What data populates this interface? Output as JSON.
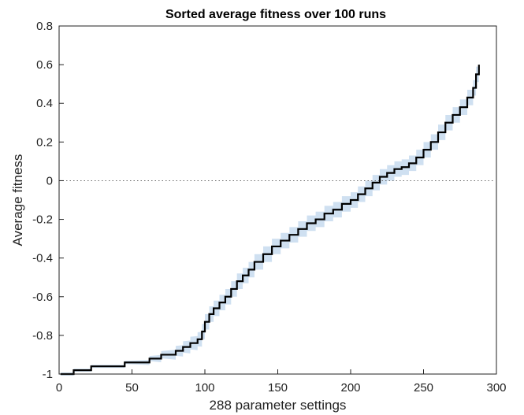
{
  "chart_data": {
    "type": "line",
    "title": "Sorted average fitness over 100 runs",
    "xlabel": "288 parameter settings",
    "ylabel": "Average fitness",
    "xlim": [
      0,
      300
    ],
    "ylim": [
      -1,
      0.8
    ],
    "xticks": [
      0,
      50,
      100,
      150,
      200,
      250,
      300
    ],
    "yticks": [
      -1,
      -0.8,
      -0.6,
      -0.4,
      -0.2,
      0,
      0.2,
      0.4,
      0.6,
      0.8
    ],
    "xtick_labels": [
      "0",
      "50",
      "100",
      "150",
      "200",
      "250",
      "300"
    ],
    "ytick_labels": [
      "-1",
      "-0.8",
      "-0.6",
      "-0.4",
      "-0.2",
      "0",
      "0.2",
      "0.4",
      "0.6",
      "0.8"
    ],
    "reference_line": {
      "y": 0,
      "style": "dotted"
    },
    "band_half_width": 0.04,
    "series": [
      {
        "style": "step",
        "color": "#000000",
        "band_color": "#cfe0f1",
        "x": [
          1,
          10,
          22,
          45,
          62,
          70,
          80,
          85,
          90,
          95,
          98,
          100,
          103,
          106,
          110,
          114,
          118,
          122,
          126,
          130,
          134,
          140,
          146,
          152,
          158,
          164,
          170,
          176,
          182,
          188,
          194,
          200,
          205,
          210,
          215,
          220,
          225,
          230,
          235,
          240,
          245,
          250,
          255,
          260,
          265,
          270,
          275,
          280,
          284,
          286,
          288
        ],
        "y": [
          -1.0,
          -0.98,
          -0.96,
          -0.94,
          -0.92,
          -0.9,
          -0.88,
          -0.86,
          -0.84,
          -0.82,
          -0.78,
          -0.73,
          -0.69,
          -0.66,
          -0.63,
          -0.6,
          -0.56,
          -0.52,
          -0.49,
          -0.46,
          -0.42,
          -0.38,
          -0.34,
          -0.31,
          -0.28,
          -0.25,
          -0.22,
          -0.2,
          -0.17,
          -0.15,
          -0.12,
          -0.1,
          -0.07,
          -0.04,
          -0.01,
          0.02,
          0.04,
          0.06,
          0.07,
          0.09,
          0.12,
          0.16,
          0.2,
          0.25,
          0.3,
          0.34,
          0.38,
          0.43,
          0.48,
          0.55,
          0.6
        ]
      }
    ]
  }
}
